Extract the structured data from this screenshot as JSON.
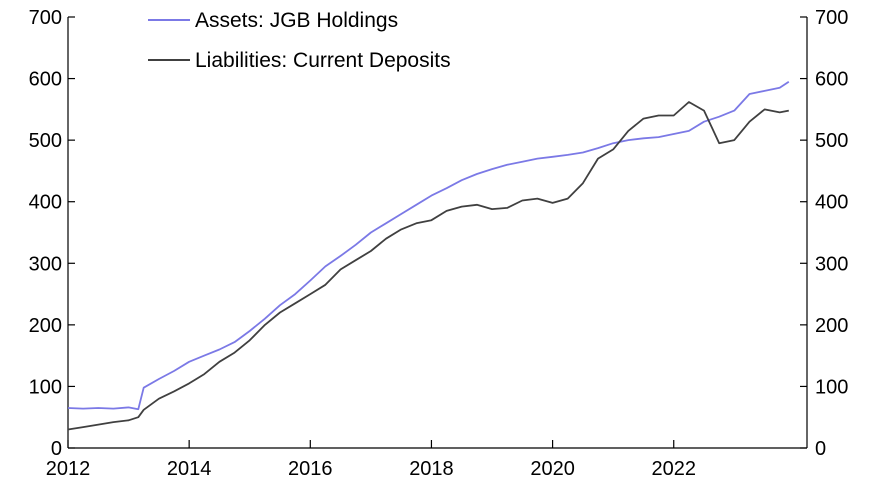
{
  "chart_data": {
    "type": "line",
    "title": "",
    "xlabel": "",
    "ylabel": "",
    "xlim": [
      2012,
      2024.2
    ],
    "ylim": [
      0,
      700
    ],
    "x_ticks": [
      "2012",
      "2014",
      "2016",
      "2018",
      "2020",
      "2022"
    ],
    "x_tick_values": [
      2012,
      2014,
      2016,
      2018,
      2020,
      2022
    ],
    "y_ticks": [
      "0",
      "100",
      "200",
      "300",
      "400",
      "500",
      "600",
      "700"
    ],
    "y_tick_values": [
      0,
      100,
      200,
      300,
      400,
      500,
      600,
      700
    ],
    "grid": false,
    "legend_position": "top-left",
    "series": [
      {
        "name": "Assets: JGB Holdings",
        "color": "#7b79e6",
        "points": [
          [
            2012.0,
            65
          ],
          [
            2012.25,
            64
          ],
          [
            2012.5,
            65
          ],
          [
            2012.75,
            64
          ],
          [
            2013.0,
            66
          ],
          [
            2013.16,
            63
          ],
          [
            2013.25,
            98
          ],
          [
            2013.5,
            112
          ],
          [
            2013.75,
            125
          ],
          [
            2014.0,
            140
          ],
          [
            2014.25,
            150
          ],
          [
            2014.5,
            160
          ],
          [
            2014.75,
            172
          ],
          [
            2015.0,
            190
          ],
          [
            2015.25,
            210
          ],
          [
            2015.5,
            232
          ],
          [
            2015.75,
            250
          ],
          [
            2016.0,
            272
          ],
          [
            2016.25,
            295
          ],
          [
            2016.5,
            312
          ],
          [
            2016.75,
            330
          ],
          [
            2017.0,
            350
          ],
          [
            2017.25,
            365
          ],
          [
            2017.5,
            380
          ],
          [
            2017.75,
            395
          ],
          [
            2018.0,
            410
          ],
          [
            2018.25,
            422
          ],
          [
            2018.5,
            435
          ],
          [
            2018.75,
            445
          ],
          [
            2019.0,
            453
          ],
          [
            2019.25,
            460
          ],
          [
            2019.5,
            465
          ],
          [
            2019.75,
            470
          ],
          [
            2020.0,
            473
          ],
          [
            2020.25,
            476
          ],
          [
            2020.5,
            480
          ],
          [
            2020.75,
            487
          ],
          [
            2021.0,
            495
          ],
          [
            2021.25,
            500
          ],
          [
            2021.5,
            503
          ],
          [
            2021.75,
            505
          ],
          [
            2022.0,
            510
          ],
          [
            2022.25,
            515
          ],
          [
            2022.5,
            530
          ],
          [
            2022.75,
            538
          ],
          [
            2023.0,
            548
          ],
          [
            2023.25,
            575
          ],
          [
            2023.5,
            580
          ],
          [
            2023.75,
            585
          ],
          [
            2023.9,
            595
          ]
        ]
      },
      {
        "name": "Liabilities: Current Deposits",
        "color": "#404040",
        "points": [
          [
            2012.0,
            30
          ],
          [
            2012.25,
            34
          ],
          [
            2012.5,
            38
          ],
          [
            2012.75,
            42
          ],
          [
            2013.0,
            45
          ],
          [
            2013.16,
            50
          ],
          [
            2013.25,
            62
          ],
          [
            2013.5,
            80
          ],
          [
            2013.75,
            92
          ],
          [
            2014.0,
            105
          ],
          [
            2014.25,
            120
          ],
          [
            2014.5,
            140
          ],
          [
            2014.75,
            155
          ],
          [
            2015.0,
            175
          ],
          [
            2015.25,
            200
          ],
          [
            2015.5,
            220
          ],
          [
            2015.75,
            235
          ],
          [
            2016.0,
            250
          ],
          [
            2016.25,
            265
          ],
          [
            2016.5,
            290
          ],
          [
            2016.75,
            305
          ],
          [
            2017.0,
            320
          ],
          [
            2017.25,
            340
          ],
          [
            2017.5,
            355
          ],
          [
            2017.75,
            365
          ],
          [
            2018.0,
            370
          ],
          [
            2018.25,
            385
          ],
          [
            2018.5,
            392
          ],
          [
            2018.75,
            395
          ],
          [
            2019.0,
            388
          ],
          [
            2019.25,
            390
          ],
          [
            2019.5,
            402
          ],
          [
            2019.75,
            405
          ],
          [
            2020.0,
            398
          ],
          [
            2020.25,
            405
          ],
          [
            2020.5,
            430
          ],
          [
            2020.75,
            470
          ],
          [
            2021.0,
            485
          ],
          [
            2021.25,
            515
          ],
          [
            2021.5,
            535
          ],
          [
            2021.75,
            540
          ],
          [
            2022.0,
            540
          ],
          [
            2022.25,
            562
          ],
          [
            2022.5,
            548
          ],
          [
            2022.75,
            495
          ],
          [
            2023.0,
            500
          ],
          [
            2023.25,
            530
          ],
          [
            2023.5,
            550
          ],
          [
            2023.75,
            545
          ],
          [
            2023.9,
            548
          ]
        ]
      }
    ]
  }
}
